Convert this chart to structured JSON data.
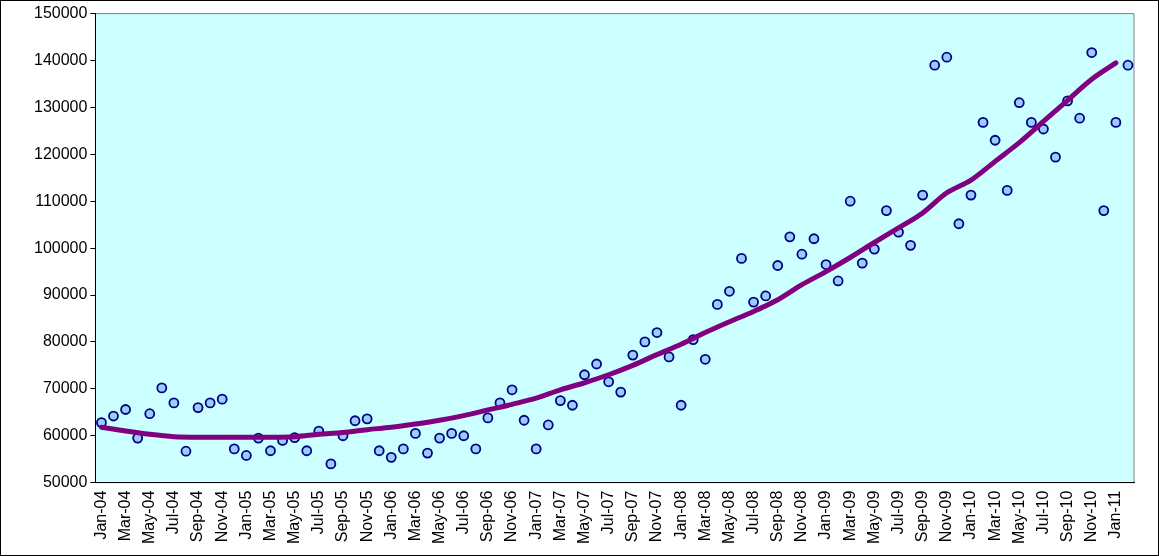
{
  "chart_data": {
    "type": "scatter",
    "categories": [
      "Jan-04",
      null,
      "Mar-04",
      null,
      "May-04",
      null,
      "Jul-04",
      null,
      "Sep-04",
      null,
      "Nov-04",
      null,
      "Jan-05",
      null,
      "Mar-05",
      null,
      "May-05",
      null,
      "Jul-05",
      null,
      "Sep-05",
      null,
      "Nov-05",
      null,
      "Jan-06",
      null,
      "Mar-06",
      null,
      "May-06",
      null,
      "Jul-06",
      null,
      "Sep-06",
      null,
      "Nov-06",
      null,
      "Jan-07",
      null,
      "Mar-07",
      null,
      "May-07",
      null,
      "Jul-07",
      null,
      "Sep-07",
      null,
      "Nov-07",
      null,
      "Jan-08",
      null,
      "Mar-08",
      null,
      "May-08",
      null,
      "Jul-08",
      null,
      "Sep-08",
      null,
      "Nov-08",
      null,
      "Jan-09",
      null,
      "Mar-09",
      null,
      "May-09",
      null,
      "Jul-09",
      null,
      "Sep-09",
      null,
      "Nov-09",
      null,
      "Jan-10",
      null,
      "Mar-10",
      null,
      "May-10",
      null,
      "Jul-10",
      null,
      "Sep-10",
      null,
      "Nov-10",
      null,
      "Jan-11",
      null
    ],
    "series": [
      {
        "color": "#99ccff",
        "marker": "circle",
        "values": [
          62800,
          64200,
          65600,
          59500,
          64700,
          70200,
          67000,
          56700,
          66000,
          67000,
          67800,
          57200,
          55800,
          59500,
          56800,
          59000,
          59600,
          56800,
          61000,
          54000,
          60000,
          63200,
          63600,
          56800,
          55400,
          57200,
          60500,
          56300,
          59500,
          60500,
          60000,
          57200,
          63800,
          67000,
          69800,
          63300,
          57200,
          62300,
          67500,
          66500,
          73000,
          75300,
          71500,
          69300,
          77200,
          80000,
          82000,
          76800,
          66500,
          80500,
          76300,
          88000,
          90800,
          97800,
          88500,
          89800,
          96300,
          102400,
          98700,
          102000,
          96500,
          93000,
          110000,
          96800,
          99800,
          108000,
          103400,
          100600,
          111300,
          139000,
          140700,
          105200,
          111300,
          126800,
          123000,
          112300,
          131000,
          126800,
          125400,
          119400,
          131400,
          127700,
          141700,
          108000,
          126800,
          139000
        ]
      },
      {
        "type": "line",
        "color": "#800080",
        "marker": "none",
        "line_style": "solid",
        "x": [
          "Jan-04",
          "Mar-04",
          "May-04",
          "Jul-04",
          "Sep-04",
          "Nov-04",
          "Jan-05",
          "Mar-05",
          "May-05",
          "Jul-05",
          "Sep-05",
          "Nov-05",
          "Jan-06",
          "Mar-06",
          "May-06",
          "Jul-06",
          "Sep-06",
          "Nov-06",
          "Jan-07",
          "Mar-07",
          "May-07",
          "Jul-07",
          "Sep-07",
          "Nov-07",
          "Jan-08",
          "Mar-08",
          "May-08",
          "Jul-08",
          "Sep-08",
          "Nov-08",
          "Jan-09",
          "Mar-09",
          "May-09",
          "Jul-09",
          "Sep-09",
          "Nov-09",
          "Jan-10",
          "Mar-10",
          "May-10",
          "Jul-10",
          "Sep-10",
          "Nov-10",
          "Jan-11"
        ],
        "values": [
          61800,
          61000,
          60300,
          59800,
          59700,
          59700,
          59700,
          59700,
          59800,
          60300,
          60700,
          61300,
          61800,
          62500,
          63300,
          64300,
          65500,
          66700,
          68000,
          69800,
          71300,
          73000,
          75000,
          77300,
          79500,
          82000,
          84300,
          86500,
          89000,
          92200,
          95000,
          98000,
          101200,
          104300,
          107500,
          111800,
          114500,
          118500,
          122500,
          127000,
          131500,
          136000,
          139500
        ]
      }
    ],
    "ylim": [
      50000,
      150000
    ],
    "yticks": [
      50000,
      60000,
      70000,
      80000,
      90000,
      100000,
      110000,
      120000,
      130000,
      140000,
      150000
    ],
    "grid": false,
    "legend": false
  }
}
